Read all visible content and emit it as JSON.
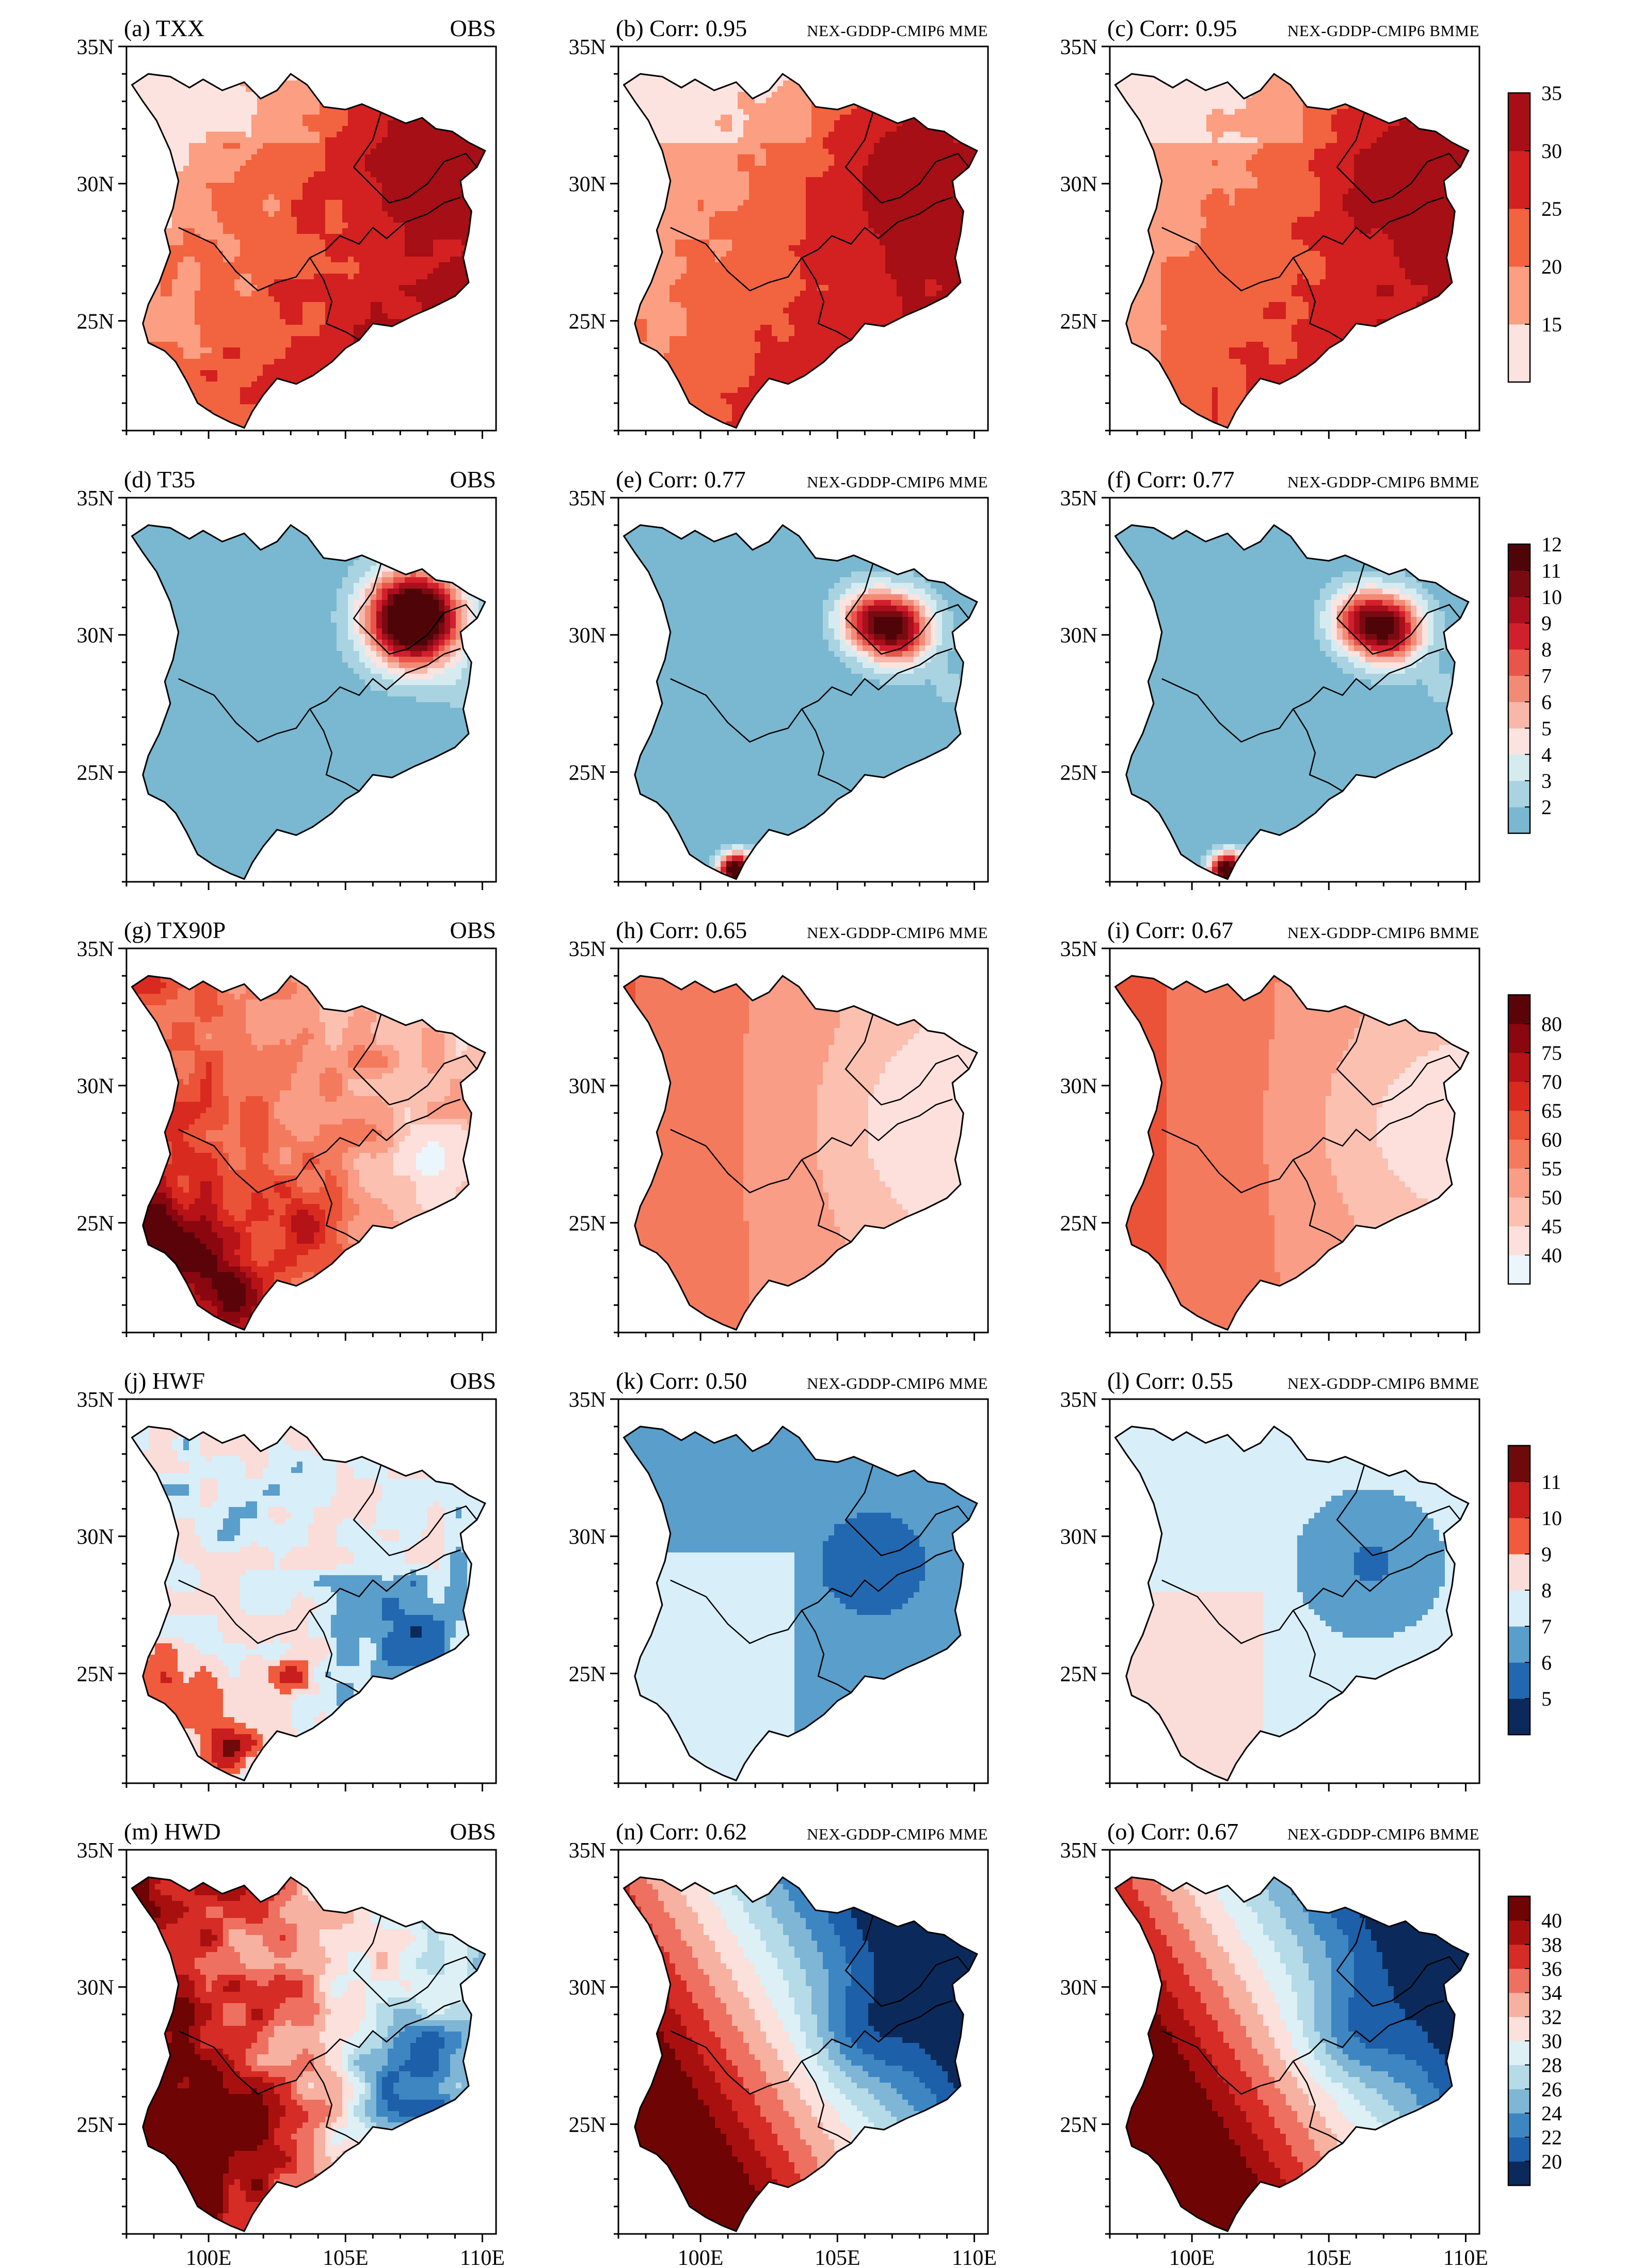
{
  "chart_data": {
    "type": "heatmap",
    "layout": {
      "rows": 5,
      "cols": 3
    },
    "xaxis": {
      "ticks": [
        100,
        105,
        110
      ],
      "tick_labels": [
        "100E",
        "105E",
        "110E"
      ],
      "range": [
        97,
        110.5
      ]
    },
    "yaxis": {
      "ticks": [
        25,
        30,
        35
      ],
      "tick_labels": [
        "25N",
        "30N",
        "35N"
      ],
      "range": [
        21,
        35
      ]
    },
    "rows": [
      {
        "id": "txx",
        "palette": "red",
        "colorbar": {
          "labels": [
            "15",
            "20",
            "25",
            "30",
            "35"
          ],
          "colors": [
            "#fde3df",
            "#fb9e81",
            "#f2633f",
            "#d32020",
            "#a50f15"
          ]
        },
        "panels": [
          {
            "id": "a",
            "label": "(a) TXX",
            "source": "OBS",
            "base": 22,
            "hot": 12,
            "corr": ""
          },
          {
            "id": "b",
            "label": "(b) Corr: 0.95",
            "source": "NEX-GDDP-CMIP6 MME",
            "base": 25,
            "hot": 10,
            "corr": "0.95"
          },
          {
            "id": "c",
            "label": "(c) Corr: 0.95",
            "source": "NEX-GDDP-CMIP6 BMME",
            "base": 24,
            "hot": 11,
            "corr": "0.95"
          }
        ]
      },
      {
        "id": "t35",
        "palette": "blue-red",
        "colorbar": {
          "labels": [
            "2",
            "3",
            "4",
            "5",
            "6",
            "7",
            "8",
            "9",
            "10",
            "11",
            "12"
          ],
          "colors": [
            "#79b8d0",
            "#a9d3e0",
            "#d6ebf0",
            "#fbe3e0",
            "#f7b7aa",
            "#f28b75",
            "#e8554a",
            "#d21f2d",
            "#a90f1c",
            "#7a0a12",
            "#4f0508"
          ]
        },
        "panels": [
          {
            "id": "d",
            "label": "(d) T35",
            "source": "OBS",
            "hot": 12
          },
          {
            "id": "e",
            "label": "(e) Corr: 0.77",
            "source": "NEX-GDDP-CMIP6 MME",
            "hot": 9,
            "corr": "0.77"
          },
          {
            "id": "f",
            "label": "(f) Corr: 0.77",
            "source": "NEX-GDDP-CMIP6 BMME",
            "hot": 9,
            "corr": "0.77"
          }
        ]
      },
      {
        "id": "tx90p",
        "palette": "red",
        "colorbar": {
          "labels": [
            "40",
            "45",
            "50",
            "55",
            "60",
            "65",
            "70",
            "75",
            "80"
          ],
          "colors": [
            "#eaf6fb",
            "#fde0dc",
            "#fbc0b0",
            "#f99d86",
            "#f47a5d",
            "#ea5338",
            "#d92a20",
            "#b51317",
            "#8a0710",
            "#5a040a"
          ]
        },
        "panels": [
          {
            "id": "g",
            "label": "(g) TX90P",
            "source": "OBS"
          },
          {
            "id": "h",
            "label": "(h) Corr: 0.65",
            "source": "NEX-GDDP-CMIP6 MME",
            "corr": "0.65"
          },
          {
            "id": "i",
            "label": "(i) Corr: 0.67",
            "source": "NEX-GDDP-CMIP6 BMME",
            "corr": "0.67"
          }
        ]
      },
      {
        "id": "hwf",
        "palette": "blue-red",
        "colorbar": {
          "labels": [
            "5",
            "6",
            "7",
            "8",
            "9",
            "10",
            "11"
          ],
          "colors": [
            "#0b2a5b",
            "#2268b0",
            "#5a9ecb",
            "#d8eef8",
            "#fadcd9",
            "#ef5b3c",
            "#c81e1e",
            "#6e0a0a"
          ]
        },
        "panels": [
          {
            "id": "j",
            "label": "(j) HWF",
            "source": "OBS"
          },
          {
            "id": "k",
            "label": "(k) Corr: 0.50",
            "source": "NEX-GDDP-CMIP6 MME",
            "corr": "0.50"
          },
          {
            "id": "l",
            "label": "(l) Corr: 0.55",
            "source": "NEX-GDDP-CMIP6 BMME",
            "corr": "0.55"
          }
        ]
      },
      {
        "id": "hwd",
        "palette": "blue-red",
        "colorbar": {
          "labels": [
            "20",
            "22",
            "24",
            "26",
            "28",
            "30",
            "32",
            "34",
            "36",
            "38",
            "40"
          ],
          "colors": [
            "#0b2a5b",
            "#1d5fa8",
            "#3d86c2",
            "#7fb6d6",
            "#b4dbe7",
            "#dcf0f6",
            "#fbe0dc",
            "#f7b1a0",
            "#ee7060",
            "#d52c26",
            "#a81010",
            "#6e0404"
          ]
        },
        "panels": [
          {
            "id": "m",
            "label": "(m) HWD",
            "source": "OBS"
          },
          {
            "id": "n",
            "label": "(n) Corr: 0.62",
            "source": "NEX-GDDP-CMIP6 MME",
            "corr": "0.62"
          },
          {
            "id": "o",
            "label": "(o) Corr: 0.67",
            "source": "NEX-GDDP-CMIP6 BMME",
            "corr": "0.67"
          }
        ]
      }
    ]
  }
}
